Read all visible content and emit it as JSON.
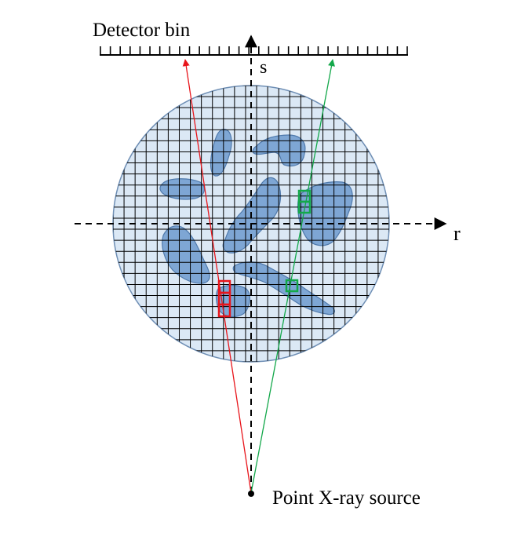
{
  "labels": {
    "detector": "Detector bin",
    "s_axis": "s",
    "r_axis": "r",
    "source": "Point X-ray source"
  },
  "colors": {
    "object_fill": "#dbe8f5",
    "object_stroke": "#6f8fb5",
    "blob_fill": "#7ea6d4",
    "blob_stroke": "#4f79ab",
    "grid": "#000000",
    "red_ray": "#e8151b",
    "green_ray": "#13a84a"
  }
}
